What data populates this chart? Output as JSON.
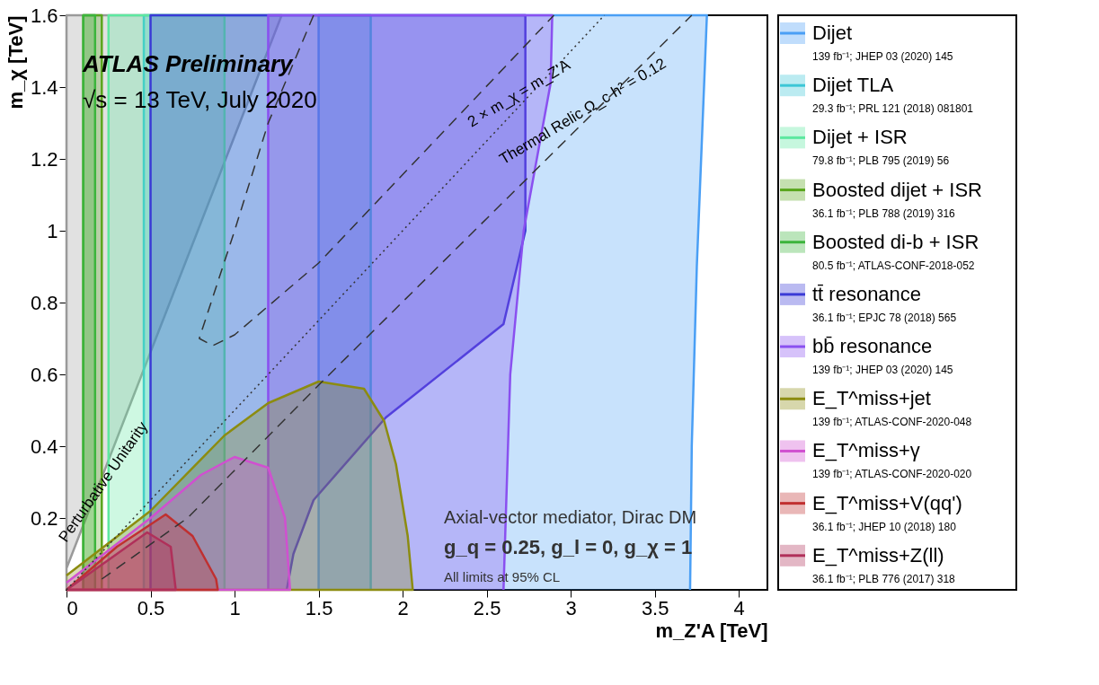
{
  "chart_data": {
    "type": "area",
    "title": "ATLAS Preliminary",
    "subtitle": "√s = 13 TeV, July 2020",
    "xlabel": "m_Z'A [TeV]",
    "ylabel": "m_χ [TeV]",
    "xlim": [
      0,
      4.17
    ],
    "ylim": [
      0,
      1.6
    ],
    "xticks": [
      0,
      0.5,
      1,
      1.5,
      2,
      2.5,
      3,
      3.5,
      4
    ],
    "yticks": [
      0.2,
      0.4,
      0.6,
      0.8,
      1,
      1.2,
      1.4,
      1.6
    ],
    "legend": "right",
    "series": [
      {
        "color": "#9a9a9a",
        "x": [
          0,
          0,
          1.28,
          0.49,
          0
        ],
        "values": [
          0,
          1.6,
          1.6,
          0.65,
          0.06
        ]
      },
      {
        "name": "Dijet",
        "color": "#4a9ff5",
        "x": [
          1.5,
          1.5,
          3.81,
          3.75,
          3.72,
          3.71
        ],
        "values": [
          0,
          1.6,
          1.6,
          0.9,
          0.4,
          0
        ]
      },
      {
        "name": "Dijet TLA",
        "color": "#3cc6d6",
        "x": [
          0.46,
          0.46,
          1.81,
          1.81
        ],
        "values": [
          0,
          1.6,
          1.6,
          0
        ]
      },
      {
        "name": "Dijet + ISR",
        "color": "#5de8a0",
        "x": [
          0.25,
          0.25,
          0.94,
          0.94
        ],
        "values": [
          0,
          1.6,
          1.6,
          0
        ]
      },
      {
        "name": "Boosted dijet + ISR",
        "color": "#5aa61e",
        "x": [
          0.1,
          0.1,
          0.21,
          0.21
        ],
        "values": [
          0,
          1.6,
          1.6,
          0
        ]
      },
      {
        "name": "Boosted di-b + ISR",
        "color": "#3cb43c",
        "x": [
          0.1,
          0.1,
          0.17,
          0.17
        ],
        "values": [
          0,
          1.6,
          1.6,
          0
        ]
      },
      {
        "name": "tt̄ resonance",
        "color": "#3a3ad6",
        "x": [
          0.5,
          0.5,
          2.73,
          2.73,
          2.6,
          1.9,
          1.47,
          1.35,
          1.31
        ],
        "values": [
          0,
          1.6,
          1.6,
          1.0,
          0.74,
          0.48,
          0.25,
          0.1,
          0
        ]
      },
      {
        "name": "bb̄ resonance",
        "color": "#8a50f0",
        "x": [
          1.2,
          1.2,
          2.89,
          2.88,
          2.72,
          2.64,
          2.6
        ],
        "values": [
          0,
          1.6,
          1.6,
          1.41,
          1.0,
          0.6,
          0
        ]
      },
      {
        "name": "E_T^miss+jet",
        "color": "#8c8c10",
        "x": [
          0,
          0.5,
          0.94,
          1.2,
          1.5,
          1.77,
          1.89,
          1.96,
          2.03,
          2.06,
          0
        ],
        "values": [
          0.04,
          0.22,
          0.43,
          0.52,
          0.58,
          0.56,
          0.47,
          0.35,
          0.15,
          0,
          0
        ]
      },
      {
        "name": "E_T^miss+γ",
        "color": "#d050d0",
        "x": [
          0,
          0.5,
          0.8,
          1.0,
          1.2,
          1.3,
          1.33,
          0
        ],
        "values": [
          0.02,
          0.2,
          0.32,
          0.37,
          0.34,
          0.2,
          0,
          0
        ]
      },
      {
        "name": "E_T^miss+V(qq')",
        "color": "#c03030",
        "x": [
          0,
          0.3,
          0.59,
          0.75,
          0.89,
          0.9,
          0
        ],
        "values": [
          0,
          0.12,
          0.21,
          0.15,
          0.03,
          0,
          0
        ]
      },
      {
        "name": "E_T^miss+Z(ll)",
        "color": "#b0305a",
        "x": [
          0,
          0.3,
          0.48,
          0.62,
          0.65,
          0
        ],
        "values": [
          0,
          0.1,
          0.16,
          0.12,
          0,
          0
        ]
      },
      {
        "type": "line",
        "line_style": "dotted",
        "color": "#333333",
        "x": [
          0,
          3.2
        ],
        "values": [
          0,
          1.6
        ]
      },
      {
        "type": "line",
        "line_style": "dashed",
        "color": "#333333",
        "x": [
          1.47,
          1.2,
          1.0,
          0.79,
          0.87,
          1.0,
          1.5,
          2.9
        ],
        "values": [
          1.6,
          1.3,
          1.0,
          0.7,
          0.68,
          0.71,
          0.91,
          1.6
        ]
      },
      {
        "type": "line",
        "line_style": "dashed",
        "color": "#333333",
        "x": [
          0.21,
          0.72,
          1.5,
          3.72
        ],
        "values": [
          0.03,
          0.2,
          0.57,
          1.6
        ]
      }
    ],
    "annotations": [
      "139 fb⁻¹; JHEP 03 (2020) 145",
      "29.3 fb⁻¹; PRL 121 (2018) 081801",
      "79.8 fb⁻¹; PLB 795 (2019) 56",
      "36.1 fb⁻¹; PLB 788 (2019) 316",
      "80.5 fb⁻¹; ATLAS-CONF-2018-052",
      "36.1 fb⁻¹; EPJC 78 (2018) 565",
      "139 fb⁻¹; JHEP 03 (2020) 145",
      "139 fb⁻¹; ATLAS-CONF-2020-048",
      "139 fb⁻¹; ATLAS-CONF-2020-020",
      "36.1 fb⁻¹; JHEP 10 (2018) 180",
      "36.1 fb⁻¹; PLB 776 (2017) 318",
      "Axial-vector mediator, Dirac DM",
      "g_q = 0.25, g_l = 0, g_χ = 1",
      "All limits at 95% CL",
      {
        "text": "Perturbative Unitarity",
        "x": 0.22,
        "y": 0.3
      },
      {
        "text": "2 × m_χ = m_Z'A",
        "x": 2.72,
        "y": 1.36
      },
      {
        "text": "Thermal Relic Ω_c h² = 0.12",
        "x": 3.1,
        "y": 1.31
      }
    ]
  }
}
